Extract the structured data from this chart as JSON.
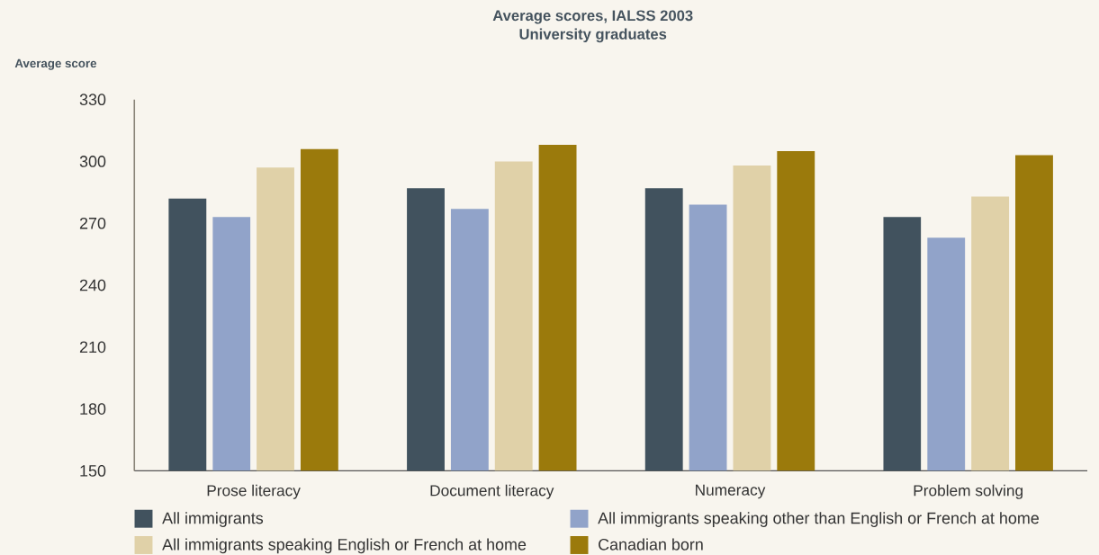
{
  "chart_data": {
    "type": "bar",
    "title": "Average scores, IALSS 2003",
    "subtitle": "University graduates",
    "ylabel": "Average score",
    "categories": [
      "Prose literacy",
      "Document literacy",
      "Numeracy",
      "Problem solving"
    ],
    "series": [
      {
        "name": "All immigrants",
        "color": "#41525e",
        "values": [
          282,
          287,
          287,
          273
        ]
      },
      {
        "name": "All immigrants speaking other than English or French at home",
        "color": "#91a3c9",
        "values": [
          273,
          277,
          279,
          263
        ]
      },
      {
        "name": "All immigrants speaking English or French at home",
        "color": "#e0d1a8",
        "values": [
          297,
          300,
          298,
          283
        ]
      },
      {
        "name": "Canadian born",
        "color": "#9b7a0c",
        "values": [
          306,
          308,
          305,
          303
        ]
      }
    ],
    "ylim": [
      150,
      330
    ],
    "yticks": [
      150,
      180,
      210,
      240,
      270,
      300,
      330
    ],
    "grid": false,
    "legend": "bottom"
  }
}
